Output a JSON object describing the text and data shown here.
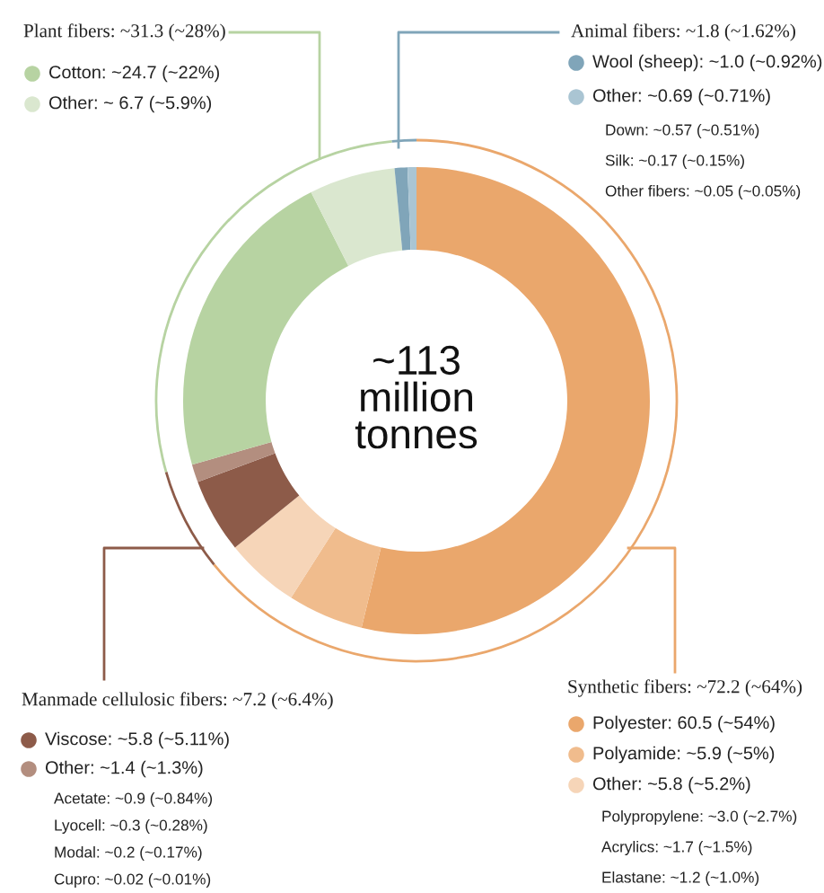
{
  "chart_data": {
    "type": "donut",
    "categories": [
      "Polyester: 60.5 (~54%)",
      "Polyamide: ~5.9 (~5%)",
      "Other: ~5.8 (~5.2%)",
      "Viscose: ~5.8 (~5.11%)",
      "Other: ~1.4 (~1.3%)",
      "Cotton: ~24.7 (~22%)",
      "Other: ~ 6.7 (~5.9%)",
      "Wool (sheep): ~1.0 (~0.92%)",
      "Other: ~0.69 (~0.71%)"
    ],
    "values": [
      60.5,
      5.9,
      5.8,
      5.8,
      1.4,
      24.7,
      6.7,
      1.0,
      0.69
    ],
    "legend": "bottom right",
    "colors": [
      "#eaa76c",
      "#f0bc8d",
      "#f6d5b8",
      "#8d5b49",
      "#b38e7f",
      "#b7d3a2",
      "#dae7cf",
      "#80a5b9",
      "#aac5d3"
    ],
    "annotations": [
      "~113\nmillion\ntonnes",
      "Synthetic fibers: ~72.2 (~64%)",
      "Manmade cellulosic fibers: ~7.2 (~6.4%)",
      "Plant fibers: ~31.3 (~28%)",
      "Animal fibers: ~1.8 (~1.62%)",
      "Polypropylene: ~3.0 (~2.7%)",
      "Acrylics: ~1.7 (~1.5%)",
      "Elastane: ~1.2 (~1.0%)",
      "Acetate: ~0.9 (~0.84%)",
      "Lyocell: ~0.3 (~0.28%)",
      "Modal: ~0.2 (~0.17%)",
      "Cupro: ~0.02 (~0.01%)",
      "Down: ~0.57 (~0.51%)",
      "Silk: ~0.17 (~0.15%)",
      "Other fibers: ~0.05 (~0.05%)"
    ]
  }
}
